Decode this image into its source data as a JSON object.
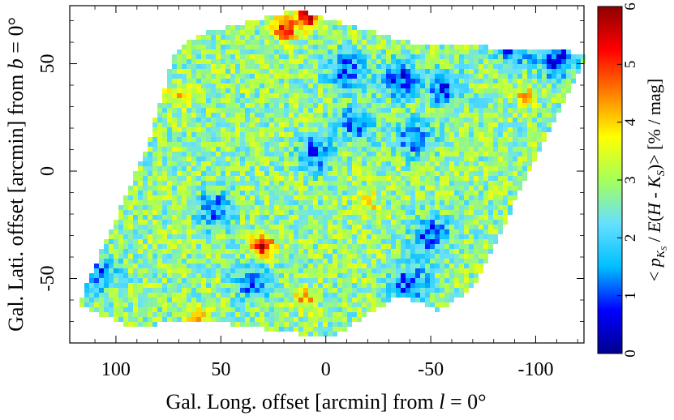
{
  "chart_data": {
    "type": "heatmap",
    "title": "",
    "xlabel_parts": [
      "Gal. Long. offset [arcmin] from ",
      "l",
      " = 0°"
    ],
    "ylabel_parts": [
      "Gal. Lati. offset [arcmin] from ",
      "b",
      " = 0°"
    ],
    "xlim": [
      122,
      -123
    ],
    "ylim": [
      -80,
      77
    ],
    "x_ticks": [
      100,
      50,
      0,
      -50,
      -100
    ],
    "x_tick_labels": [
      "100",
      "50",
      "0",
      "-50",
      "-100"
    ],
    "y_ticks": [
      50,
      0,
      -50
    ],
    "y_tick_labels": [
      "50",
      "0",
      "-50"
    ],
    "grid": false,
    "colorbar": {
      "range": [
        0,
        6
      ],
      "ticks": [
        0,
        1,
        2,
        3,
        4,
        5,
        6
      ],
      "tick_labels": [
        "0",
        "1",
        "2",
        "3",
        "4",
        "5",
        "6"
      ],
      "label": "<p_KS / E(H - K_S)> [% / mag]",
      "colormap": [
        "#00008f",
        "#0000ff",
        "#00bfff",
        "#66e0ff",
        "#a6ff5a",
        "#ffff00",
        "#ff8000",
        "#ff0000",
        "#8f0000"
      ]
    },
    "map_footprint_vertices": [
      [
        118,
        -62
      ],
      [
        85,
        12
      ],
      [
        72,
        55
      ],
      [
        60,
        64
      ],
      [
        14,
        75
      ],
      [
        -40,
        60
      ],
      [
        -125,
        55
      ],
      [
        -70,
        -55
      ],
      [
        -54,
        -65
      ],
      [
        -35,
        -58
      ],
      [
        -2,
        -78
      ],
      [
        55,
        -70
      ],
      [
        95,
        -72
      ]
    ],
    "typical_value": 2.8,
    "features": [
      {
        "kind": "high",
        "x": 30,
        "y": -35,
        "value": 5.8
      },
      {
        "kind": "high",
        "x": 20,
        "y": 66,
        "value": 5.5
      },
      {
        "kind": "high",
        "x": 8,
        "y": 72,
        "value": 6.0
      },
      {
        "kind": "low",
        "x": -35,
        "y": 43,
        "value": 0.8
      },
      {
        "kind": "low",
        "x": -10,
        "y": 47,
        "value": 1.0
      },
      {
        "kind": "low",
        "x": -57,
        "y": 38,
        "value": 1.1
      },
      {
        "kind": "low",
        "x": -50,
        "y": -30,
        "value": 0.9
      },
      {
        "kind": "low",
        "x": -40,
        "y": -52,
        "value": 0.9
      },
      {
        "kind": "low",
        "x": 53,
        "y": -18,
        "value": 1.0
      },
      {
        "kind": "low",
        "x": 5,
        "y": 8,
        "value": 1.1
      },
      {
        "kind": "low",
        "x": 35,
        "y": -52,
        "value": 1.2
      },
      {
        "kind": "low",
        "x": -15,
        "y": 22,
        "value": 1.1
      },
      {
        "kind": "low",
        "x": 108,
        "y": -48,
        "value": 1.2
      },
      {
        "kind": "low",
        "x": -42,
        "y": 15,
        "value": 1.2
      },
      {
        "kind": "high",
        "x": 70,
        "y": 35,
        "value": 4.0
      },
      {
        "kind": "high",
        "x": -20,
        "y": -15,
        "value": 4.0
      },
      {
        "kind": "high",
        "x": -95,
        "y": 35,
        "value": 3.9
      },
      {
        "kind": "high",
        "x": 10,
        "y": -60,
        "value": 4.2
      },
      {
        "kind": "high",
        "x": 60,
        "y": -70,
        "value": 4.2
      },
      {
        "kind": "low",
        "x": -90,
        "y": 58,
        "value": 0.9
      },
      {
        "kind": "low",
        "x": -110,
        "y": 52,
        "value": 0.6
      }
    ]
  }
}
